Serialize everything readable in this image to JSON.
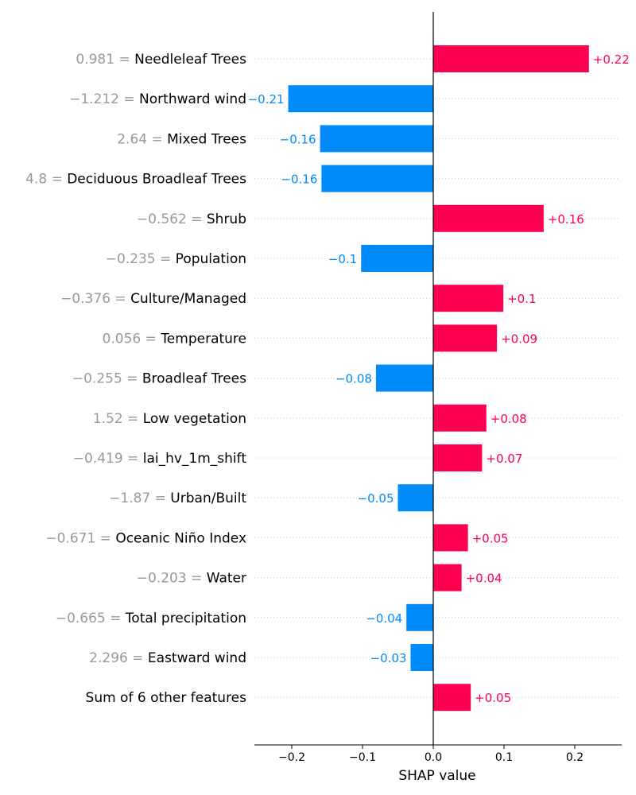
{
  "chart_data": {
    "type": "bar",
    "orientation": "horizontal",
    "xlabel": "SHAP value",
    "xlim": [
      -0.25,
      0.26
    ],
    "xticks": [
      -0.2,
      -0.1,
      0.0,
      0.1,
      0.2
    ],
    "xtick_labels": [
      "−0.2",
      "−0.1",
      "0.0",
      "0.1",
      "0.2"
    ],
    "grid": "horizontal dotted lines at each bar",
    "colors": {
      "positive": "#ff0051",
      "negative": "#008bfb",
      "feature_value": "#999999"
    },
    "rows": [
      {
        "value_text": "0.981 =",
        "feature": "Needleleaf Trees",
        "shap": 0.22,
        "label": "+0.22"
      },
      {
        "value_text": "−1.212 =",
        "feature": "Northward wind",
        "shap": -0.205,
        "label": "−0.21"
      },
      {
        "value_text": "2.64 =",
        "feature": "Mixed Trees",
        "shap": -0.16,
        "label": "−0.16"
      },
      {
        "value_text": "4.8 =",
        "feature": "Deciduous Broadleaf Trees",
        "shap": -0.158,
        "label": "−0.16"
      },
      {
        "value_text": "−0.562 =",
        "feature": "Shrub",
        "shap": 0.156,
        "label": "+0.16"
      },
      {
        "value_text": "−0.235 =",
        "feature": "Population",
        "shap": -0.102,
        "label": "−0.1"
      },
      {
        "value_text": "−0.376 =",
        "feature": "Culture/Managed",
        "shap": 0.099,
        "label": "+0.1"
      },
      {
        "value_text": "0.056 =",
        "feature": "Temperature",
        "shap": 0.09,
        "label": "+0.09"
      },
      {
        "value_text": "−0.255 =",
        "feature": "Broadleaf Trees",
        "shap": -0.081,
        "label": "−0.08"
      },
      {
        "value_text": "1.52 =",
        "feature": "Low vegetation",
        "shap": 0.075,
        "label": "+0.08"
      },
      {
        "value_text": "−0.419 =",
        "feature": "lai_hv_1m_shift",
        "shap": 0.069,
        "label": "+0.07"
      },
      {
        "value_text": "−1.87 =",
        "feature": "Urban/Built",
        "shap": -0.05,
        "label": "−0.05"
      },
      {
        "value_text": "−0.671 =",
        "feature": "Oceanic Niño Index",
        "shap": 0.049,
        "label": "+0.05"
      },
      {
        "value_text": "−0.203 =",
        "feature": "Water",
        "shap": 0.04,
        "label": "+0.04"
      },
      {
        "value_text": "−0.665 =",
        "feature": "Total precipitation",
        "shap": -0.038,
        "label": "−0.04"
      },
      {
        "value_text": "2.296 =",
        "feature": "Eastward wind",
        "shap": -0.032,
        "label": "−0.03"
      },
      {
        "value_text": "",
        "feature": "Sum of 6 other features",
        "shap": 0.053,
        "label": "+0.05"
      }
    ]
  }
}
